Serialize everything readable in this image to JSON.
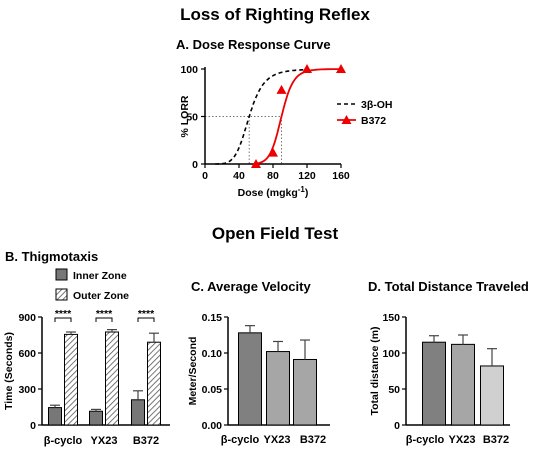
{
  "figure": {
    "title": "Loss of Righting Reflex",
    "section_title": "Open Field Test"
  },
  "chart_data": [
    {
      "id": "A",
      "type": "line",
      "title": "A. Dose Response Curve",
      "xlabel": "Dose (mgkg",
      "xlabel_sup": "-1",
      "xlabel_tail": ")",
      "ylabel": "% LORR",
      "xlim": [
        0,
        160
      ],
      "ylim": [
        0,
        100
      ],
      "xticks": [
        0,
        40,
        80,
        120,
        160
      ],
      "yticks": [
        0,
        50,
        100
      ],
      "series": [
        {
          "name": "3β-OH",
          "style": "dashed",
          "color": "#000000",
          "ed50": 52,
          "hill": 6
        },
        {
          "name": "B372",
          "style": "solid",
          "marker": "triangle",
          "color": "#ee0000",
          "ed50": 90,
          "hill": 13,
          "points": [
            {
              "x": 60,
              "y": 0
            },
            {
              "x": 80,
              "y": 12
            },
            {
              "x": 90,
              "y": 78
            },
            {
              "x": 120,
              "y": 100
            },
            {
              "x": 160,
              "y": 100
            }
          ]
        }
      ],
      "reference_lines": {
        "y": 50,
        "x": [
          52,
          90
        ]
      },
      "legend_position": "right"
    },
    {
      "id": "B",
      "type": "bar",
      "title": "B. Thigmotaxis",
      "ylabel": "Time (Seconds)",
      "ylim": [
        0,
        900
      ],
      "yticks": [
        0,
        300,
        600,
        900
      ],
      "categories": [
        "β-cyclo",
        "YX23",
        "B372"
      ],
      "series": [
        {
          "name": "Inner Zone",
          "fill": "#777777",
          "pattern": "solid",
          "values": [
            145,
            115,
            210
          ],
          "errors": [
            20,
            15,
            75
          ]
        },
        {
          "name": "Outer Zone",
          "fill": "#d0d0d0",
          "pattern": "hatch",
          "values": [
            755,
            775,
            690
          ],
          "errors": [
            20,
            20,
            75
          ]
        }
      ],
      "significance": [
        "****",
        "****",
        "****"
      ],
      "legend_position": "top"
    },
    {
      "id": "C",
      "type": "bar",
      "title": "C. Average Velocity",
      "ylabel": "Meter/Second",
      "ylim": [
        0,
        0.15
      ],
      "yticks": [
        "0.00",
        "0.05",
        "0.10",
        "0.15"
      ],
      "categories": [
        "β-cyclo",
        "YX23",
        "B372"
      ],
      "values": [
        0.128,
        0.102,
        0.091
      ],
      "errors": [
        0.01,
        0.014,
        0.027
      ],
      "colors": [
        "#808080",
        "#a6a6a6",
        "#a6a6a6"
      ]
    },
    {
      "id": "D",
      "type": "bar",
      "title": "D. Total Distance Traveled",
      "ylabel": "Total distance (m)",
      "ylim": [
        0,
        150
      ],
      "yticks": [
        0,
        50,
        100,
        150
      ],
      "categories": [
        "β-cyclo",
        "YX23",
        "B372"
      ],
      "values": [
        115,
        112,
        82
      ],
      "errors": [
        9,
        13,
        24
      ],
      "colors": [
        "#808080",
        "#a6a6a6",
        "#d0d0d0"
      ]
    }
  ]
}
